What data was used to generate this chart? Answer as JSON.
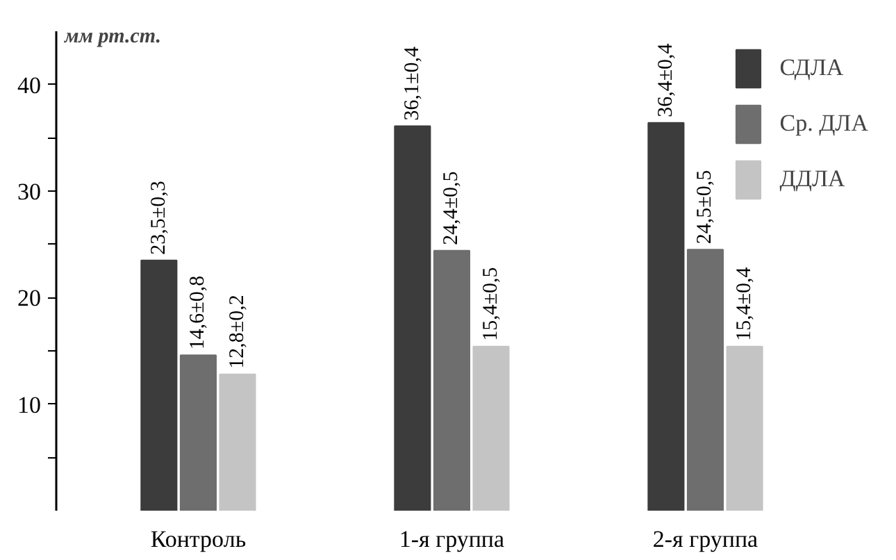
{
  "chart_data": {
    "type": "bar",
    "ylabel": "мм рт.ст.",
    "categories": [
      "Контроль",
      "1-я группа",
      "2-я группа"
    ],
    "series": [
      {
        "name": "СДЛА",
        "color": "#3c3c3c",
        "values": [
          23.5,
          36.1,
          36.4
        ],
        "value_labels": [
          "23,5±0,3",
          "36,1±0,4",
          "36,4±0,4"
        ]
      },
      {
        "name": "Ср. ДЛА",
        "color": "#6e6e6e",
        "values": [
          14.6,
          24.4,
          24.5
        ],
        "value_labels": [
          "14,6±0,8",
          "24,4±0,5",
          "24,5±0,5"
        ]
      },
      {
        "name": "ДДЛА",
        "color": "#c4c4c4",
        "values": [
          12.8,
          15.4,
          15.4
        ],
        "value_labels": [
          "12,8±0,2",
          "15,4±0,5",
          "15,4±0,4"
        ]
      }
    ],
    "ylim": [
      0,
      45
    ],
    "yticks": [
      {
        "value": 5,
        "label": null
      },
      10,
      {
        "value": 15,
        "label": null
      },
      20,
      {
        "value": 25,
        "label": null
      },
      30,
      {
        "value": 35,
        "label": null
      },
      40
    ],
    "grid": false,
    "legend": "top right"
  }
}
